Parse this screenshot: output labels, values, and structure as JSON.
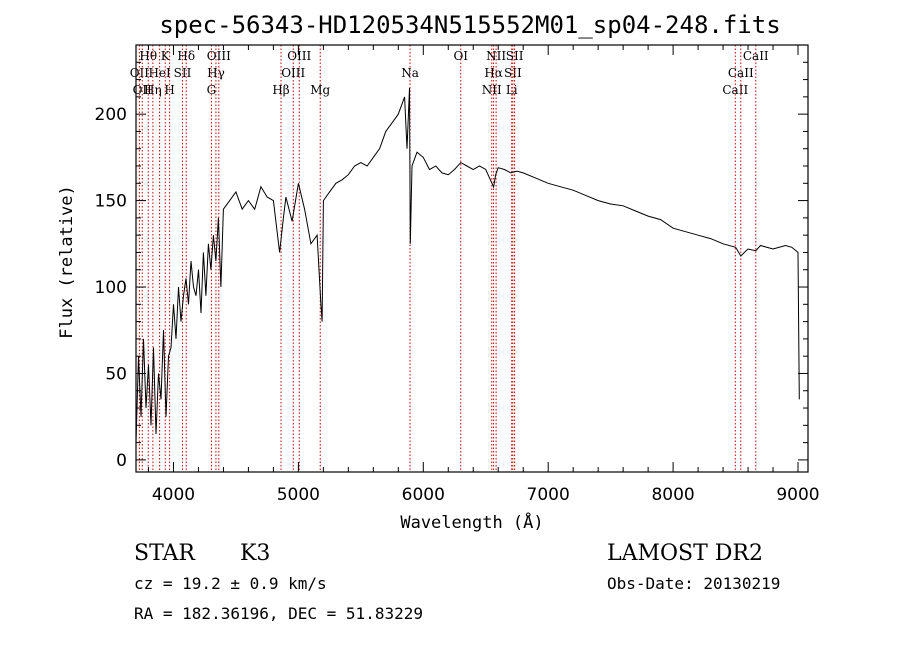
{
  "chart_data": {
    "type": "line",
    "title": "spec-56343-HD120534N515552M01_sp04-248.fits",
    "xlabel": "Wavelength (Å)",
    "ylabel": "Flux (relative)",
    "xlim": [
      3700,
      9080
    ],
    "ylim": [
      -7,
      240
    ],
    "xticks": [
      4000,
      5000,
      6000,
      7000,
      8000,
      9000
    ],
    "yticks": [
      0,
      50,
      100,
      150,
      200
    ],
    "grid": false,
    "line_color": "#000000",
    "marker_color": "#cc0000",
    "series": [
      {
        "x": [
          3700,
          3720,
          3740,
          3760,
          3780,
          3800,
          3820,
          3840,
          3860,
          3880,
          3900,
          3920,
          3940,
          3960,
          3980,
          4000,
          4020,
          4040,
          4060,
          4080,
          4100,
          4120,
          4140,
          4160,
          4180,
          4200,
          4220,
          4240,
          4260,
          4280,
          4300,
          4320,
          4340,
          4360,
          4380,
          4400,
          4450,
          4500,
          4550,
          4600,
          4650,
          4700,
          4750,
          4800,
          4850,
          4880,
          4900,
          4950,
          5000,
          5050,
          5100,
          5150,
          5180,
          5190,
          5200,
          5250,
          5300,
          5350,
          5400,
          5450,
          5500,
          5550,
          5600,
          5650,
          5700,
          5750,
          5800,
          5850,
          5870,
          5890,
          5896,
          5910,
          5950,
          6000,
          6050,
          6100,
          6150,
          6200,
          6250,
          6300,
          6350,
          6400,
          6450,
          6500,
          6550,
          6563,
          6580,
          6600,
          6650,
          6700,
          6750,
          6800,
          6900,
          7000,
          7100,
          7200,
          7300,
          7400,
          7500,
          7600,
          7700,
          7800,
          7900,
          8000,
          8100,
          8200,
          8300,
          8400,
          8500,
          8542,
          8600,
          8662,
          8700,
          8800,
          8900,
          8950,
          9000,
          9010
        ],
        "y": [
          10,
          60,
          25,
          70,
          30,
          55,
          20,
          65,
          15,
          50,
          35,
          75,
          25,
          60,
          65,
          90,
          70,
          100,
          80,
          95,
          105,
          90,
          115,
          100,
          95,
          110,
          85,
          120,
          95,
          125,
          110,
          130,
          115,
          140,
          100,
          145,
          150,
          155,
          145,
          150,
          145,
          158,
          152,
          150,
          120,
          140,
          152,
          138,
          160,
          145,
          125,
          130,
          90,
          80,
          150,
          155,
          160,
          162,
          165,
          170,
          172,
          170,
          175,
          180,
          190,
          195,
          200,
          210,
          180,
          215,
          125,
          170,
          178,
          175,
          168,
          170,
          166,
          165,
          168,
          172,
          170,
          168,
          170,
          168,
          160,
          158,
          165,
          169,
          168,
          166,
          167,
          166,
          163,
          160,
          158,
          156,
          153,
          150,
          148,
          147,
          144,
          141,
          139,
          134,
          132,
          130,
          128,
          125,
          123,
          118,
          122,
          121,
          124,
          122,
          124,
          123,
          120,
          35
        ]
      }
    ],
    "line_markers": [
      {
        "wl": 3727,
        "label": "OII",
        "row": 2
      },
      {
        "wl": 3750,
        "label": "OII",
        "row": 3
      },
      {
        "wl": 3798,
        "label": "Hθ",
        "row": 1
      },
      {
        "wl": 3835,
        "label": "Hη",
        "row": 3
      },
      {
        "wl": 3889,
        "label": "HeI",
        "row": 2
      },
      {
        "wl": 3934,
        "label": "K",
        "row": 1
      },
      {
        "wl": 3969,
        "label": "H",
        "row": 3
      },
      {
        "wl": 4072,
        "label": "SII",
        "row": 2
      },
      {
        "wl": 4102,
        "label": "Hδ",
        "row": 1
      },
      {
        "wl": 4304,
        "label": "G",
        "row": 3
      },
      {
        "wl": 4340,
        "label": "Hγ",
        "row": 2
      },
      {
        "wl": 4363,
        "label": "OIII",
        "row": 1
      },
      {
        "wl": 4861,
        "label": "Hβ",
        "row": 3
      },
      {
        "wl": 4959,
        "label": "OIII",
        "row": 2
      },
      {
        "wl": 5007,
        "label": "OIII",
        "row": 1
      },
      {
        "wl": 5175,
        "label": "Mg",
        "row": 3
      },
      {
        "wl": 5894,
        "label": "Na",
        "row": 2
      },
      {
        "wl": 6300,
        "label": "OI",
        "row": 1
      },
      {
        "wl": 6548,
        "label": "NII",
        "row": 3
      },
      {
        "wl": 6563,
        "label": "Hα",
        "row": 2
      },
      {
        "wl": 6583,
        "label": "NII",
        "row": 1
      },
      {
        "wl": 6708,
        "label": "Li",
        "row": 3
      },
      {
        "wl": 6717,
        "label": "SII",
        "row": 2
      },
      {
        "wl": 6731,
        "label": "SII",
        "row": 1
      },
      {
        "wl": 8498,
        "label": "CaII",
        "row": 3
      },
      {
        "wl": 8542,
        "label": "CaII",
        "row": 2
      },
      {
        "wl": 8662,
        "label": "CaII",
        "row": 1
      }
    ]
  },
  "footer": {
    "class_label": "STAR",
    "subclass": "K3",
    "survey": "LAMOST DR2",
    "redshift": "cz = 19.2 ± 0.9 km/s",
    "obs_date": "Obs-Date: 20130219",
    "coords": "RA = 182.36196, DEC =  51.83229"
  }
}
